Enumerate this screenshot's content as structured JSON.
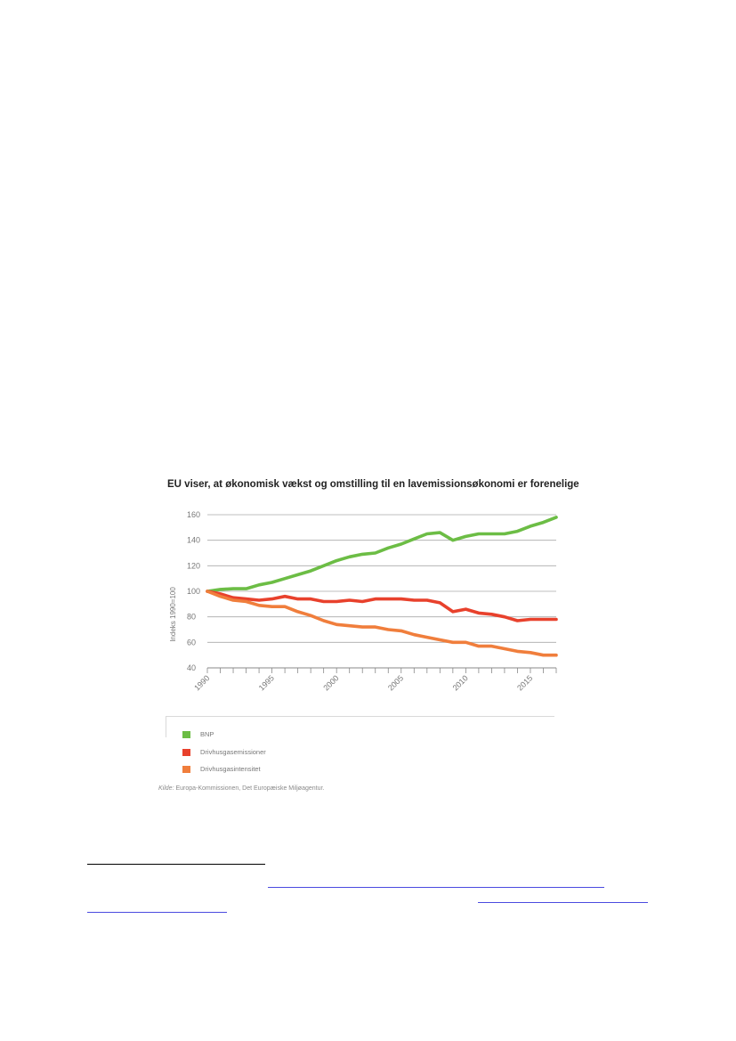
{
  "chart_data": {
    "type": "line",
    "title": "EU viser, at økonomisk vækst og omstilling til en lavemissionsøkonomi er forenelige",
    "ylabel": "Indeks 1990=100",
    "xlabel": "",
    "ylim": [
      40,
      160
    ],
    "yticks": [
      160,
      140,
      120,
      100,
      80,
      60,
      40
    ],
    "xlim": [
      1990,
      2017
    ],
    "xtick_labels": [
      "1990",
      "1995",
      "2000",
      "2005",
      "2010",
      "2015"
    ],
    "grid": true,
    "legend_position": "bottom",
    "x": [
      1990,
      1991,
      1992,
      1993,
      1994,
      1995,
      1996,
      1997,
      1998,
      1999,
      2000,
      2001,
      2002,
      2003,
      2004,
      2005,
      2006,
      2007,
      2008,
      2009,
      2010,
      2011,
      2012,
      2013,
      2014,
      2015,
      2016,
      2017
    ],
    "series": [
      {
        "name": "BNP",
        "color": "#6cbd45",
        "values": [
          100,
          101.5,
          102,
          102,
          105,
          107,
          110,
          113,
          116,
          120,
          124,
          127,
          129,
          130,
          134,
          137,
          141,
          145,
          146,
          140,
          143,
          145,
          145,
          145,
          147,
          151,
          154,
          158
        ]
      },
      {
        "name": "Drivhusgasemissioner",
        "color": "#e8412c",
        "values": [
          100,
          98,
          95,
          94,
          93,
          94,
          96,
          94,
          94,
          92,
          92,
          93,
          92,
          94,
          94,
          94,
          93,
          93,
          91,
          84,
          86,
          83,
          82,
          80,
          77,
          78,
          78,
          78
        ]
      },
      {
        "name": "Drivhusgasintensitet",
        "color": "#f07e3c",
        "values": [
          100,
          96,
          93,
          92,
          89,
          88,
          88,
          84,
          81,
          77,
          74,
          73,
          72,
          72,
          70,
          69,
          66,
          64,
          62,
          60,
          60,
          57,
          57,
          55,
          53,
          52,
          50,
          50
        ]
      }
    ]
  },
  "source": {
    "prefix": "Kilde:",
    "text": " Europa-Kommissionen, Det Europæiske Miljøagentur."
  }
}
